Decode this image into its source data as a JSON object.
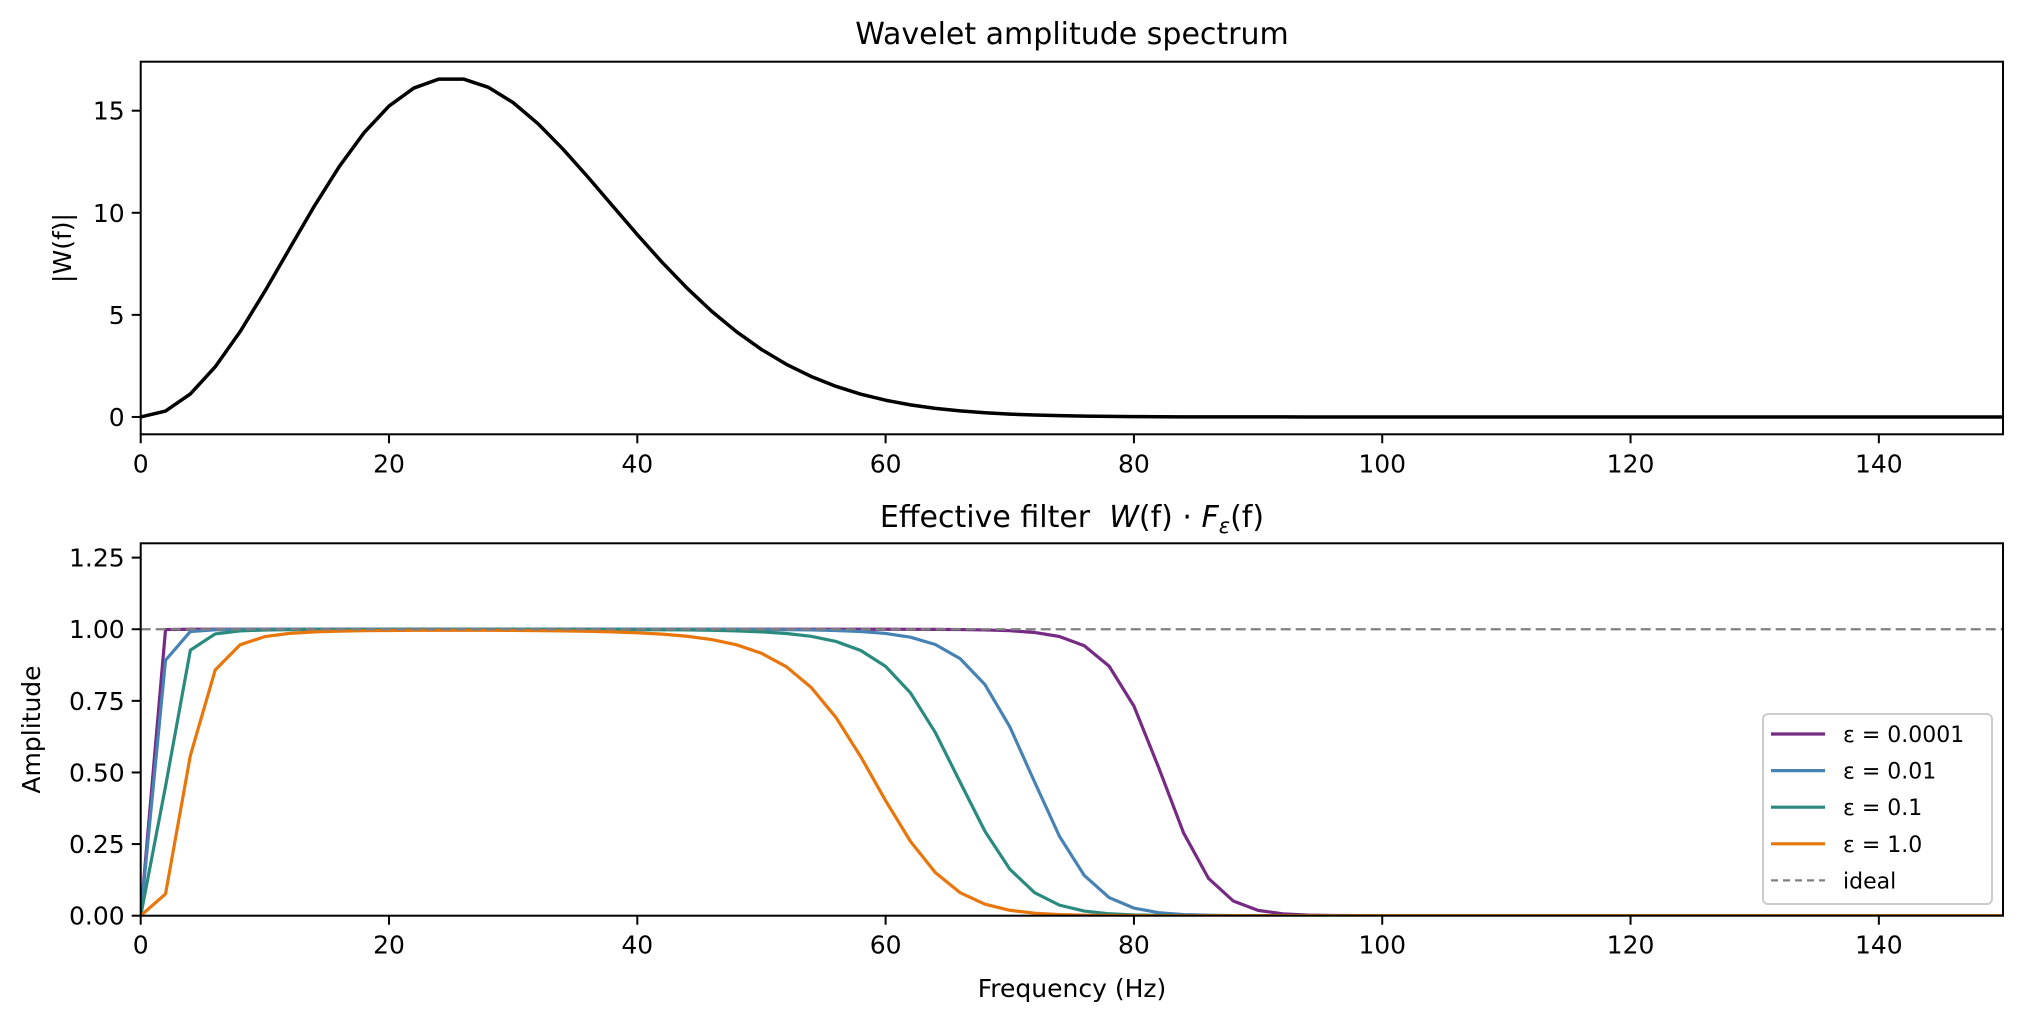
{
  "figure": {
    "colors": {
      "wavelet": "#000000",
      "ideal": "#808080",
      "legend_frame": "#cccccc"
    }
  },
  "chart_data": [
    {
      "id": "wavelet-spectrum",
      "type": "line",
      "title": "Wavelet amplitude spectrum",
      "xlabel": "",
      "ylabel": "|W(f)|",
      "xlim": [
        0,
        150
      ],
      "ylim": [
        -0.85,
        17.4
      ],
      "xticks": [
        0,
        20,
        40,
        60,
        80,
        100,
        120,
        140
      ],
      "xtick_labels": [
        "0",
        "20",
        "40",
        "60",
        "80",
        "100",
        "120",
        "140"
      ],
      "yticks": [
        0,
        5,
        10,
        15
      ],
      "ytick_labels": [
        "0",
        "5",
        "10",
        "15"
      ],
      "grid": false,
      "legend": null,
      "x": [
        0,
        2,
        4,
        6,
        8,
        10,
        12,
        14,
        16,
        18,
        20,
        22,
        24,
        26,
        28,
        30,
        32,
        34,
        36,
        38,
        40,
        42,
        44,
        46,
        48,
        50,
        52,
        54,
        56,
        58,
        60,
        62,
        64,
        66,
        68,
        70,
        72,
        74,
        76,
        78,
        80,
        82,
        84,
        86,
        88,
        90,
        92,
        94,
        96,
        98,
        100,
        102,
        104,
        106,
        108,
        110,
        112,
        114,
        116,
        118,
        120,
        122,
        124,
        126,
        128,
        130,
        132,
        134,
        136,
        138,
        140,
        142,
        144,
        146,
        148,
        150
      ],
      "series": [
        {
          "name": "|W(f)|",
          "color": "#000000",
          "values": [
            0,
            0.287,
            1.126,
            2.454,
            4.171,
            6.153,
            8.257,
            10.342,
            12.271,
            13.93,
            15.227,
            16.109,
            16.547,
            16.548,
            16.147,
            15.395,
            14.364,
            13.128,
            11.765,
            10.344,
            8.93,
            7.573,
            6.312,
            5.172,
            4.169,
            3.306,
            2.579,
            1.982,
            1.499,
            1.116,
            0.819,
            0.592,
            0.421,
            0.296,
            0.204,
            0.139,
            0.094,
            0.062,
            0.04,
            0.026,
            0.017,
            0.01,
            0.006,
            0.004,
            0.002,
            0.001,
            0.001,
            0,
            0,
            0,
            0,
            0,
            0,
            0,
            0,
            0,
            0,
            0,
            0,
            0,
            0,
            0,
            0,
            0,
            0,
            0,
            0,
            0,
            0,
            0,
            0,
            0,
            0,
            0,
            0,
            0
          ]
        }
      ]
    },
    {
      "id": "effective-filter",
      "type": "line",
      "title_prefix": "Effective filter  ",
      "title_math": {
        "w": "W",
        "f1": "(f)",
        "dot": " · ",
        "F": "F",
        "sub": "ε",
        "f2": "(f)"
      },
      "xlabel": "Frequency (Hz)",
      "ylabel": "Amplitude",
      "xlim": [
        0,
        150
      ],
      "ylim": [
        0,
        1.3
      ],
      "xticks": [
        0,
        20,
        40,
        60,
        80,
        100,
        120,
        140
      ],
      "xtick_labels": [
        "0",
        "20",
        "40",
        "60",
        "80",
        "100",
        "120",
        "140"
      ],
      "yticks": [
        0,
        0.25,
        0.5,
        0.75,
        1.0,
        1.25
      ],
      "ytick_labels": [
        "0.00",
        "0.25",
        "0.50",
        "0.75",
        "1.00",
        "1.25"
      ],
      "grid": false,
      "legend_position": "lower-right",
      "x": [
        0,
        2,
        4,
        6,
        8,
        10,
        12,
        14,
        16,
        18,
        20,
        22,
        24,
        26,
        28,
        30,
        32,
        34,
        36,
        38,
        40,
        42,
        44,
        46,
        48,
        50,
        52,
        54,
        56,
        58,
        60,
        62,
        64,
        66,
        68,
        70,
        72,
        74,
        76,
        78,
        80,
        82,
        84,
        86,
        88,
        90,
        92,
        94,
        96,
        98,
        100,
        102,
        104,
        106,
        108,
        110,
        112,
        114,
        116,
        118,
        120,
        122,
        124,
        126,
        128,
        130,
        132,
        134,
        136,
        138,
        140,
        142,
        144,
        146,
        148,
        150
      ],
      "series": [
        {
          "name": "ε = 0.0001",
          "color": "#762a83",
          "values": [
            0,
            0.9988,
            0.9999,
            1,
            1,
            1,
            1,
            1,
            1,
            1,
            1,
            1,
            1,
            1,
            1,
            1,
            1,
            1,
            1,
            1,
            1,
            1,
            1,
            1,
            1,
            1,
            1,
            1,
            0.9999,
            0.9999,
            0.9999,
            0.9997,
            0.9994,
            0.9989,
            0.9976,
            0.9949,
            0.9887,
            0.9746,
            0.9424,
            0.8713,
            0.7317,
            0.5163,
            0.2889,
            0.1307,
            0.0513,
            0.0186,
            0.0064,
            0.0021,
            0.0007,
            0.0002,
            0.0001,
            0,
            0,
            0,
            0,
            0,
            0,
            0,
            0,
            0,
            0,
            0,
            0,
            0,
            0,
            0,
            0,
            0,
            0,
            0,
            0,
            0,
            0,
            0,
            0,
            0
          ]
        },
        {
          "name": "ε = 0.01",
          "color": "#4682b4",
          "values": [
            0,
            0.8917,
            0.9922,
            0.9983,
            0.9994,
            0.9997,
            0.9999,
            0.9999,
            0.9999,
            0.9999,
            1,
            1,
            1,
            1,
            1,
            1,
            0.9999,
            0.9999,
            0.9999,
            0.9999,
            0.9999,
            0.9998,
            0.9997,
            0.9996,
            0.9994,
            0.9991,
            0.9985,
            0.9975,
            0.9956,
            0.992,
            0.9853,
            0.9722,
            0.9467,
            0.8973,
            0.8069,
            0.6599,
            0.4667,
            0.2773,
            0.1405,
            0.0634,
            0.0265,
            0.0105,
            0.004,
            0.0015,
            0.0005,
            0.0002,
            0.0001,
            0,
            0,
            0,
            0,
            0,
            0,
            0,
            0,
            0,
            0,
            0,
            0,
            0,
            0,
            0,
            0,
            0,
            0,
            0,
            0,
            0,
            0,
            0,
            0,
            0,
            0,
            0,
            0,
            0
          ]
        },
        {
          "name": "ε = 0.1",
          "color": "#2a8a7e",
          "values": [
            0,
            0.4517,
            0.9269,
            0.9837,
            0.9943,
            0.9974,
            0.9985,
            0.9991,
            0.9993,
            0.9995,
            0.9996,
            0.9996,
            0.9996,
            0.9996,
            0.9996,
            0.9996,
            0.9995,
            0.9994,
            0.9993,
            0.9991,
            0.9987,
            0.9983,
            0.9975,
            0.9963,
            0.9943,
            0.9909,
            0.9852,
            0.9752,
            0.9574,
            0.9257,
            0.8703,
            0.778,
            0.6397,
            0.4663,
            0.2947,
            0.1625,
            0.0805,
            0.0369,
            0.0161,
            0.0067,
            0.0027,
            0.0011,
            0.0004,
            0.0002,
            0.0001,
            0,
            0,
            0,
            0,
            0,
            0,
            0,
            0,
            0,
            0,
            0,
            0,
            0,
            0,
            0,
            0,
            0,
            0,
            0,
            0,
            0,
            0,
            0,
            0,
            0,
            0,
            0,
            0,
            0,
            0,
            0
          ]
        },
        {
          "name": "ε = 1.0",
          "color": "#e8760a",
          "values": [
            0,
            0.0761,
            0.5591,
            0.8576,
            0.9456,
            0.9743,
            0.9855,
            0.9907,
            0.9934,
            0.9949,
            0.9957,
            0.9962,
            0.9964,
            0.9964,
            0.9962,
            0.9958,
            0.9952,
            0.9942,
            0.9928,
            0.9907,
            0.9876,
            0.9829,
            0.9755,
            0.9639,
            0.9456,
            0.9162,
            0.8693,
            0.797,
            0.6921,
            0.5548,
            0.4015,
            0.2594,
            0.1508,
            0.0804,
            0.0401,
            0.019,
            0.0087,
            0.0038,
            0.0016,
            0.0007,
            0.0003,
            0.0001,
            0,
            0,
            0,
            0,
            0,
            0,
            0,
            0,
            0,
            0,
            0,
            0,
            0,
            0,
            0,
            0,
            0,
            0,
            0,
            0,
            0,
            0,
            0,
            0,
            0,
            0,
            0,
            0,
            0,
            0,
            0,
            0,
            0,
            0
          ]
        }
      ],
      "reference_line": {
        "name": "ideal",
        "y": 1.0,
        "color": "#808080",
        "style": "dashed"
      }
    }
  ]
}
